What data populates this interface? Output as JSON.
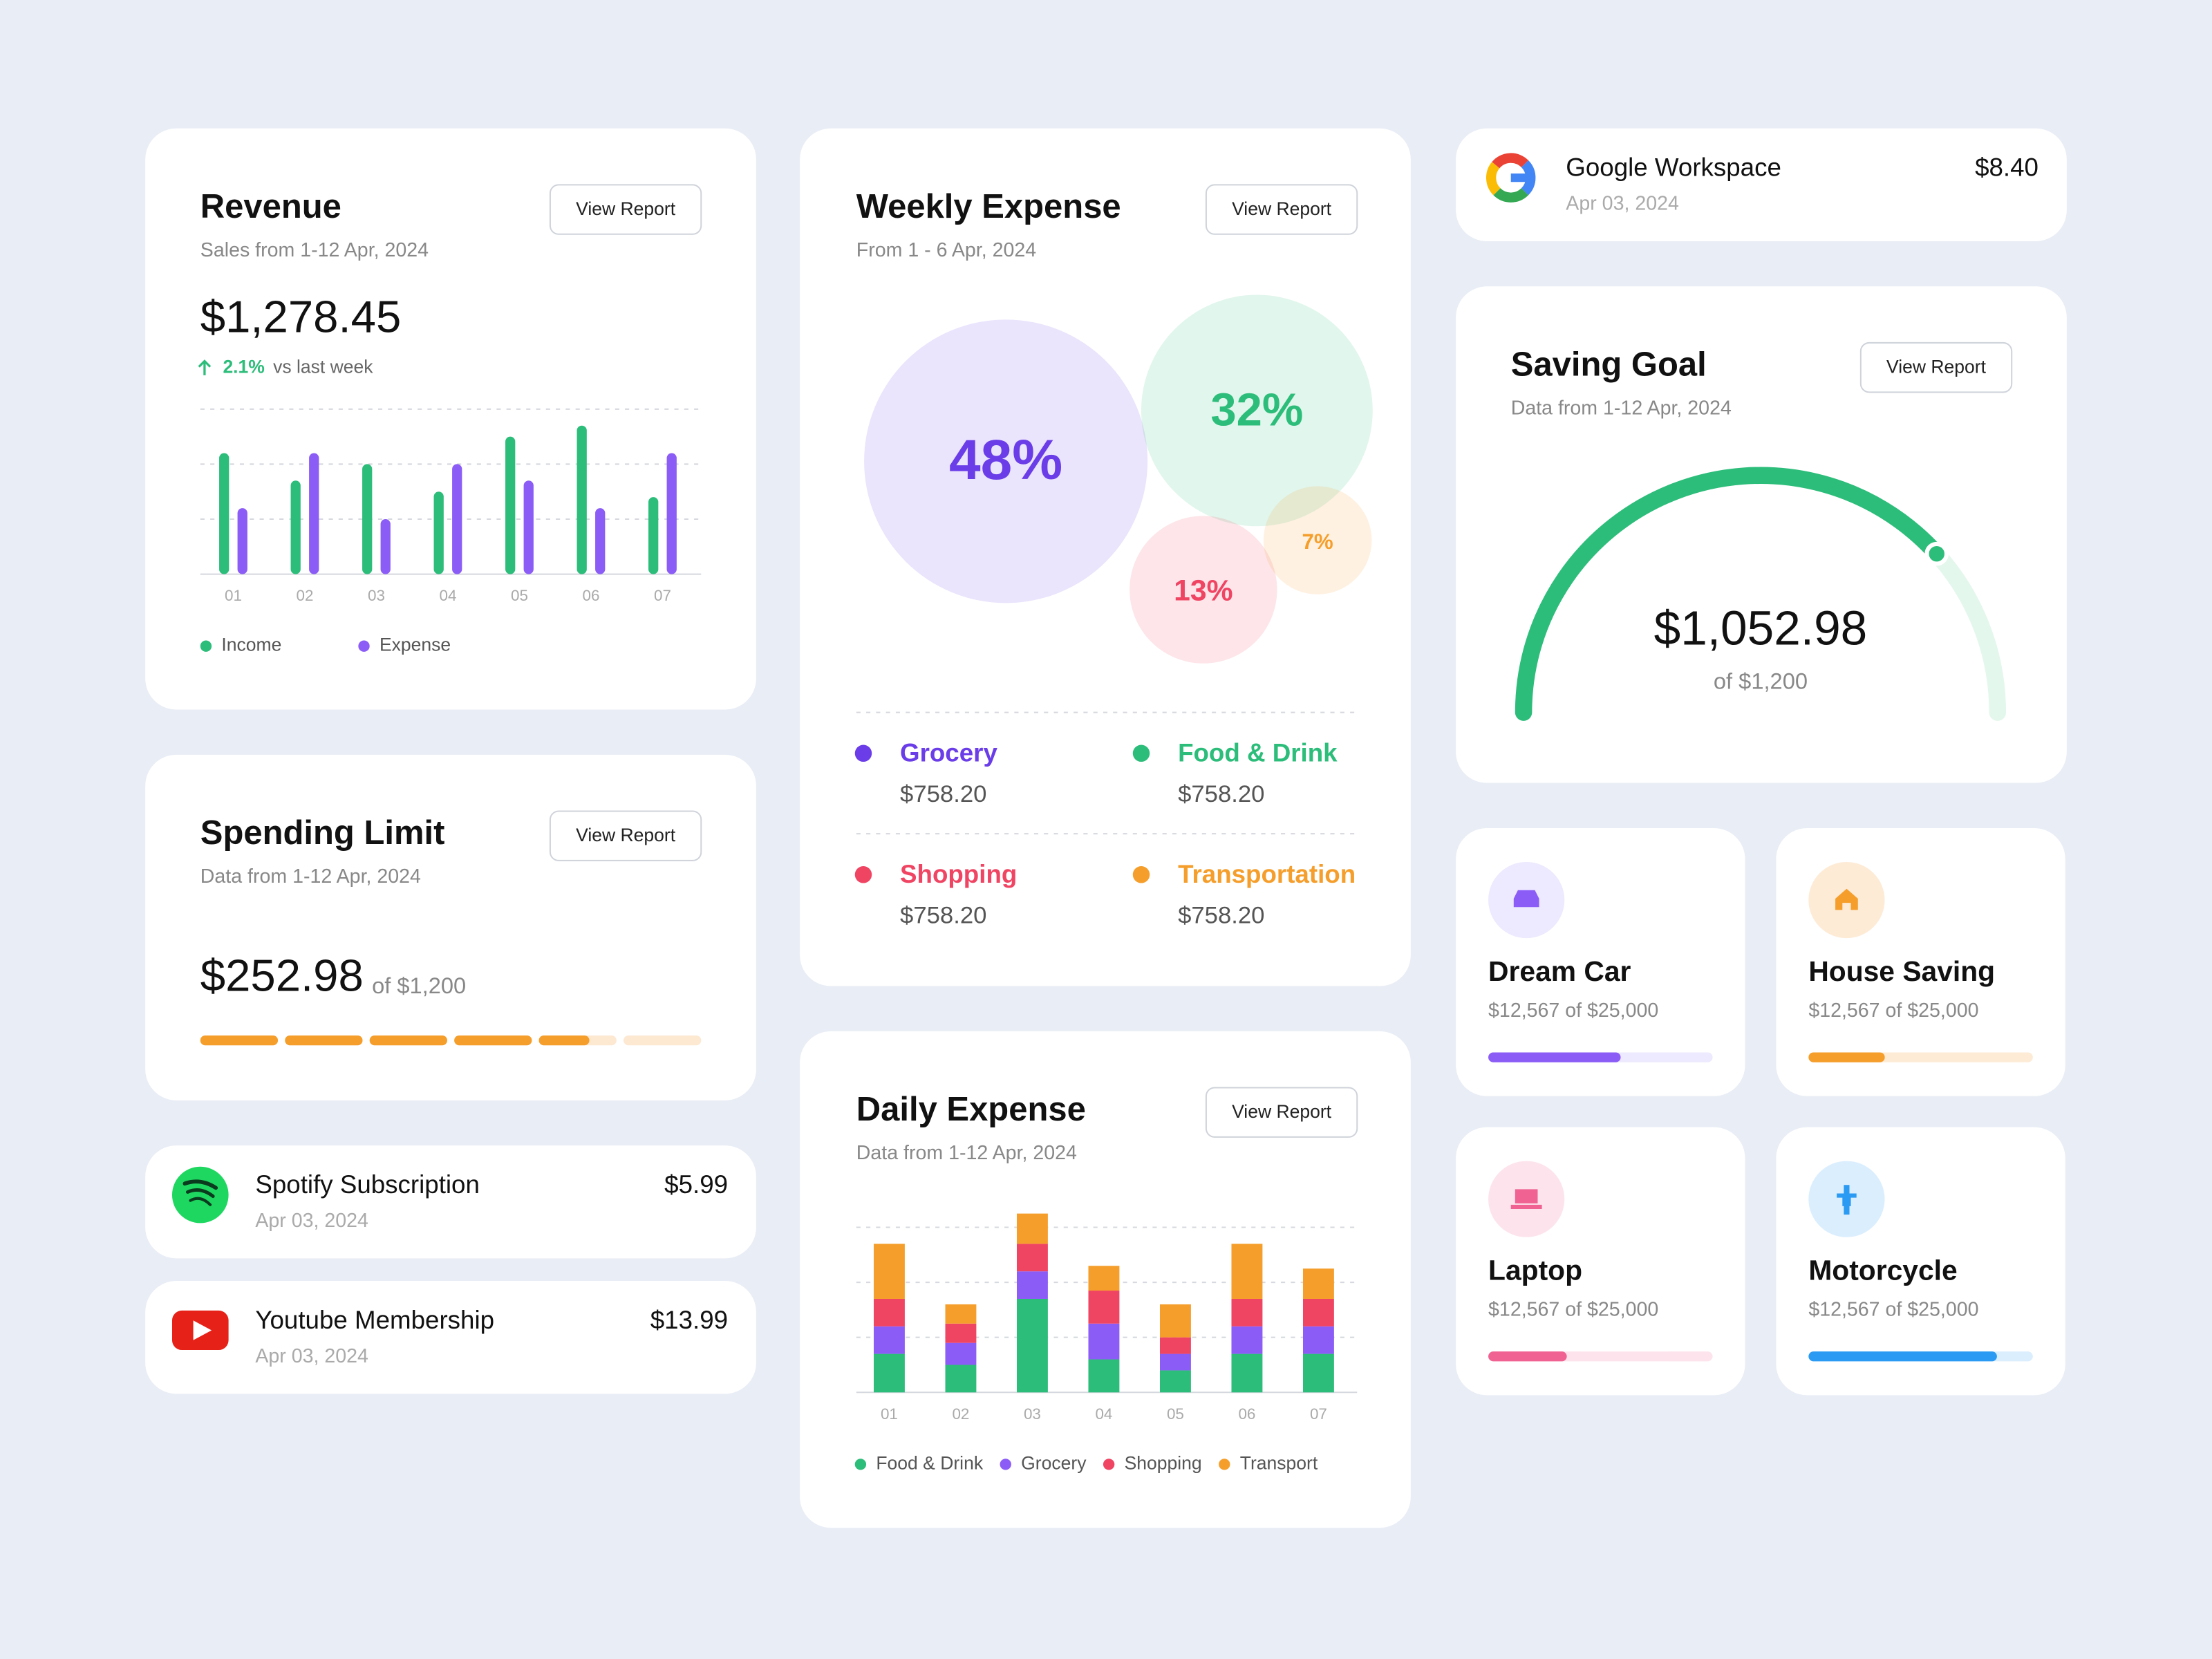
{
  "revenue": {
    "title": "Revenue",
    "button": "View Report",
    "subtitle": "Sales from 1-12 Apr, 2024",
    "amount": "$1,278.45",
    "change": "2.1%",
    "change_note": "vs last week",
    "chart": {
      "type": "bar",
      "categories": [
        "01",
        "02",
        "03",
        "04",
        "05",
        "06",
        "07"
      ],
      "ylim": [
        0,
        3
      ],
      "grid_lines": [
        1,
        2,
        3
      ],
      "series": [
        {
          "name": "Income",
          "color": "#2dbd7a",
          "values": [
            2.2,
            1.7,
            2.0,
            1.5,
            2.5,
            2.7,
            1.4
          ]
        },
        {
          "name": "Expense",
          "color": "#8b5cf6",
          "values": [
            1.2,
            2.2,
            1.0,
            2.0,
            1.7,
            1.2,
            2.2
          ]
        }
      ]
    }
  },
  "spending_limit": {
    "title": "Spending Limit",
    "button": "View Report",
    "subtitle": "Data from 1-12 Apr, 2024",
    "amount": "$252.98",
    "of": "of $1,200"
  },
  "subscriptions": [
    {
      "name": "Spotify Subscription",
      "date": "Apr 03, 2024",
      "price": "$5.99"
    },
    {
      "name": "Youtube Membership",
      "date": "Apr 03, 2024",
      "price": "$13.99"
    },
    {
      "name": "Google Workspace",
      "date": "Apr 03, 2024",
      "price": "$8.40"
    }
  ],
  "weekly_expense": {
    "title": "Weekly Expense",
    "button": "View Report",
    "subtitle": "From 1 - 6 Apr, 2024",
    "chart": {
      "type": "bubble",
      "categories": [
        "Grocery",
        "Food & Drink",
        "Shopping",
        "Transportation"
      ],
      "values": [
        48,
        32,
        13,
        7
      ],
      "value_labels": [
        "48%",
        "32%",
        "13%",
        "7%"
      ],
      "amounts": [
        "$758.20",
        "$758.20",
        "$758.20",
        "$758.20"
      ],
      "colors": [
        "#6a3de8",
        "#2dbd7a",
        "#f04463",
        "#f59e2b"
      ]
    }
  },
  "daily_expense": {
    "title": "Daily Expense",
    "button": "View Report",
    "subtitle": "Data from 1-12 Apr, 2024",
    "chart": {
      "type": "stacked-bar",
      "categories": [
        "01",
        "02",
        "03",
        "04",
        "05",
        "06",
        "07"
      ],
      "ylim": [
        0,
        3
      ],
      "grid_lines": [
        1,
        2,
        3
      ],
      "series": [
        {
          "name": "Food & Drink",
          "color": "#2dbd7a",
          "values": [
            0.7,
            0.5,
            1.7,
            0.6,
            0.4,
            0.7,
            0.7
          ]
        },
        {
          "name": "Grocery",
          "color": "#8b5cf6",
          "values": [
            0.5,
            0.4,
            0.5,
            0.65,
            0.3,
            0.5,
            0.5
          ]
        },
        {
          "name": "Shopping",
          "color": "#f04463",
          "values": [
            0.5,
            0.35,
            0.5,
            0.6,
            0.3,
            0.5,
            0.5
          ]
        },
        {
          "name": "Transport",
          "color": "#f59e2b",
          "values": [
            1.0,
            0.35,
            0.55,
            0.45,
            0.6,
            1.0,
            0.55
          ]
        }
      ]
    }
  },
  "saving_goal": {
    "title": "Saving Goal",
    "button": "View Report",
    "subtitle": "Data from 1-12 Apr, 2024",
    "amount": "$1,052.98",
    "of": "of $1,200"
  },
  "goals": [
    {
      "name": "Dream Car",
      "progress": "$12,567 of $25,000"
    },
    {
      "name": "House Saving",
      "progress": "$12,567 of $25,000"
    },
    {
      "name": "Laptop",
      "progress": "$12,567 of $25,000"
    },
    {
      "name": "Motorcycle",
      "progress": "$12,567 of $25,000"
    }
  ]
}
